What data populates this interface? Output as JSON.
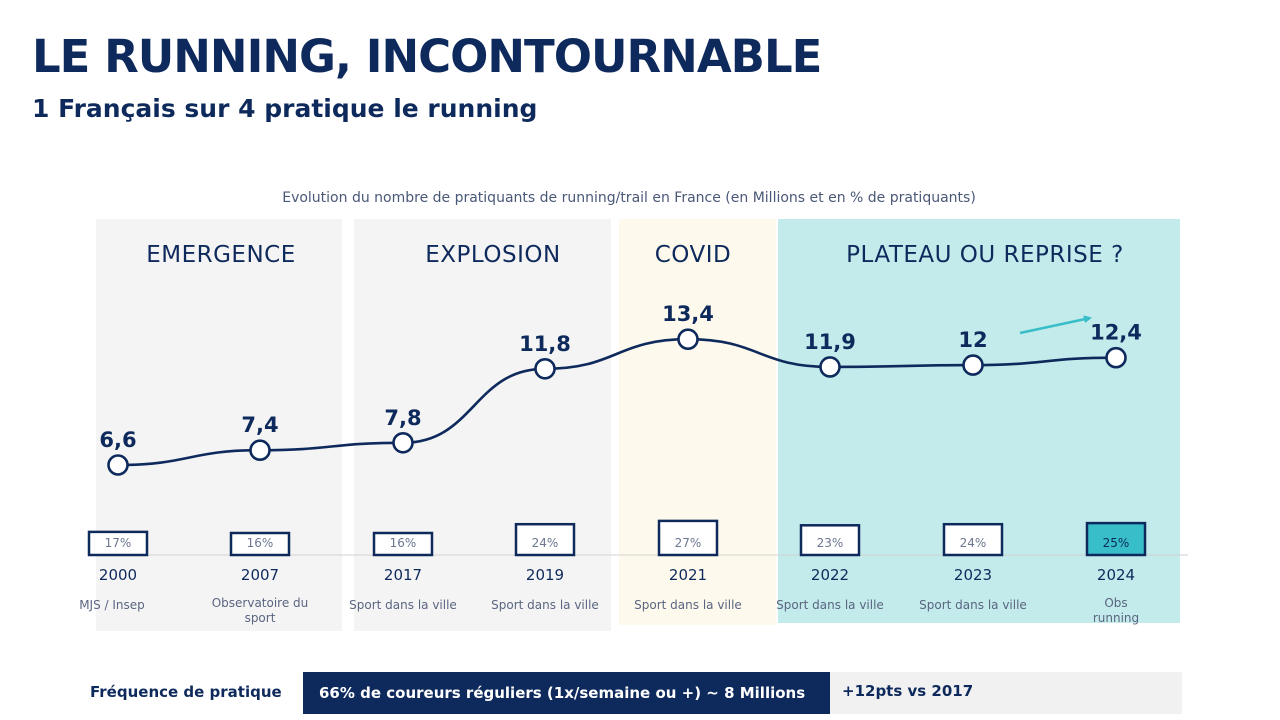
{
  "slide": {
    "title": "LE RUNNING, INCONTOURNABLE",
    "subtitle": "1 Français sur 4 pratique le running"
  },
  "colors": {
    "navy": "#0e2a5c",
    "teal_band": "#c3ebeb",
    "teal_accent": "#38bec8",
    "grey_band": "#f4f4f4",
    "covid_band": "#fdf9ec"
  },
  "chart_data": {
    "type": "line",
    "title": "Evolution du nombre de pratiquants de running/trail en France (en Millions et en % de pratiquants)",
    "categories": [
      "2000",
      "2007",
      "2017",
      "2019",
      "2021",
      "2022",
      "2023",
      "2024"
    ],
    "series": [
      {
        "values": [
          6.6,
          7.4,
          7.8,
          11.8,
          13.4,
          11.9,
          12,
          12.4
        ],
        "value_labels": [
          "6,6",
          "7,4",
          "7,8",
          "11,8",
          "13,4",
          "11,9",
          "12",
          "12,4"
        ]
      }
    ],
    "percentages": [
      17,
      16,
      16,
      24,
      27,
      23,
      24,
      25
    ],
    "percentage_labels": [
      "17%",
      "16%",
      "16%",
      "24%",
      "27%",
      "23%",
      "24%",
      "25%"
    ],
    "sources": [
      [
        "MJS / Insep"
      ],
      [
        "Observatoire du",
        "sport"
      ],
      [
        "Sport dans la ville"
      ],
      [
        "Sport dans la ville"
      ],
      [
        "Sport dans la ville"
      ],
      [
        "Sport dans la ville"
      ],
      [
        "Sport dans la ville"
      ],
      [
        "Obs",
        "running"
      ]
    ],
    "phases": [
      {
        "label": "EMERGENCE",
        "years": [
          "2000",
          "2007"
        ]
      },
      {
        "label": "EXPLOSION",
        "years": [
          "2017",
          "2019"
        ]
      },
      {
        "label": "COVID",
        "years": [
          "2021"
        ]
      },
      {
        "label": "PLATEAU OU REPRISE ?",
        "years": [
          "2022",
          "2023",
          "2024"
        ]
      }
    ],
    "highlight_year": "2024",
    "trend_arrow": "up"
  },
  "footer": {
    "label": "Fréquence de pratique",
    "main": "66% de coureurs réguliers (1x/semaine ou +) ~ 8 Millions",
    "delta": "+12pts vs 2017"
  }
}
